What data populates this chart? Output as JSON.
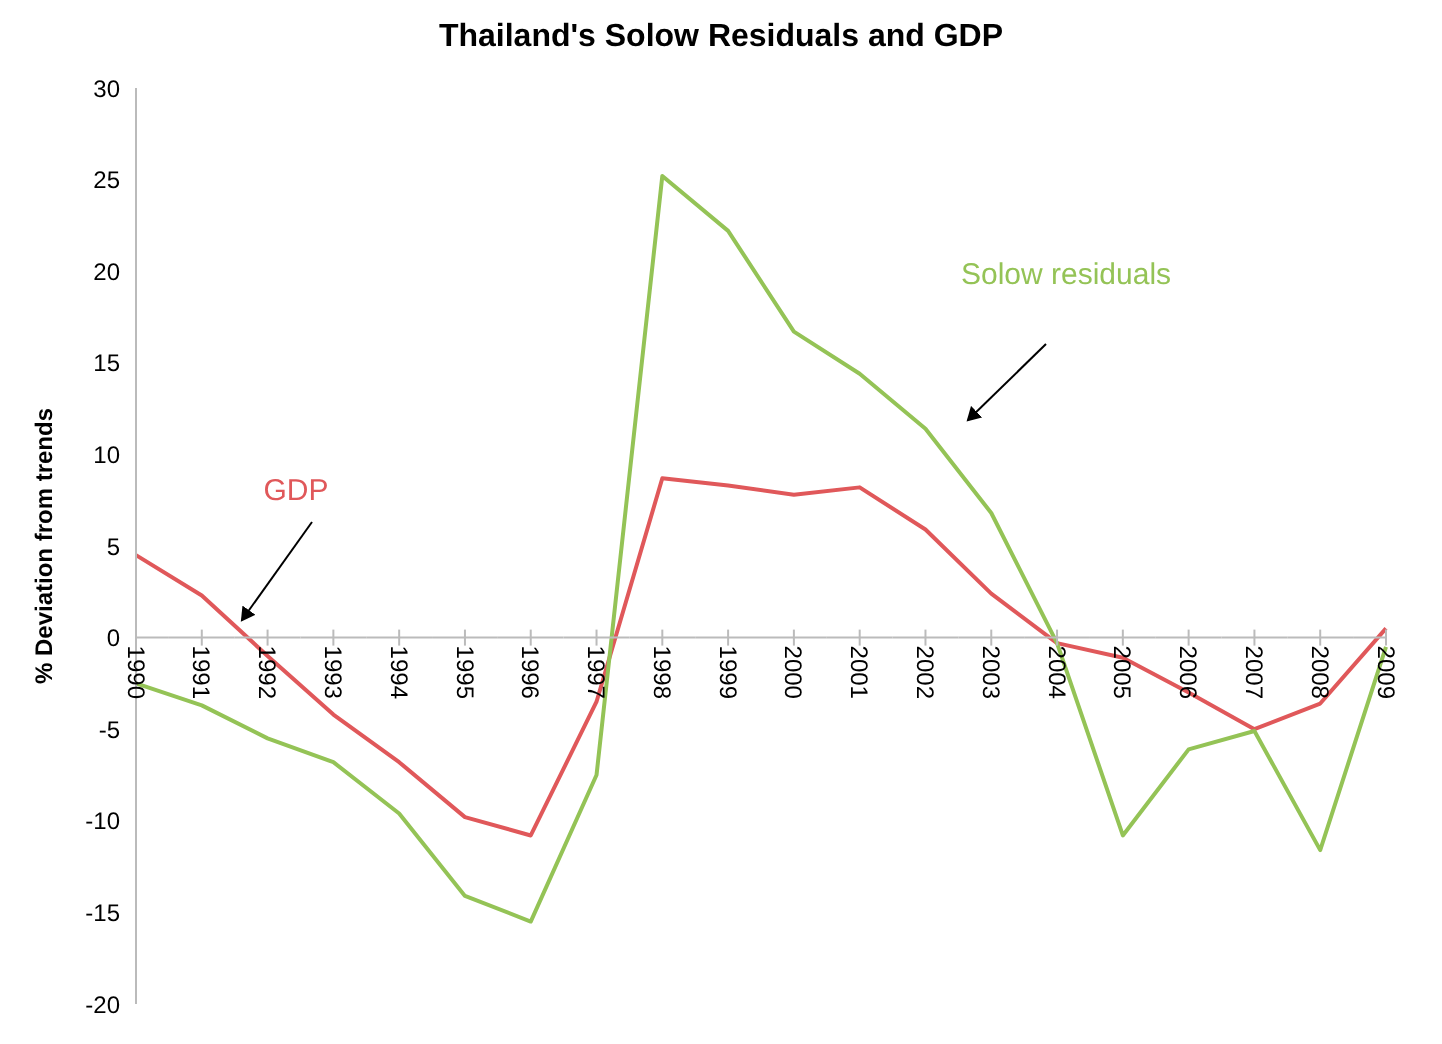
{
  "chart_data": {
    "type": "line",
    "title": "Thailand's Solow Residuals and GDP",
    "ylabel": "% Deviation from trends",
    "categories": [
      "1990",
      "1991",
      "1992",
      "1993",
      "1994",
      "1995",
      "1996",
      "1997",
      "1998",
      "1999",
      "2000",
      "2001",
      "2002",
      "2003",
      "2004",
      "2005",
      "2006",
      "2007",
      "2008",
      "2009"
    ],
    "series": [
      {
        "name": "GDP",
        "color": "#e0585a",
        "values": [
          4.5,
          2.3,
          -1,
          -4.2,
          -6.8,
          -9.8,
          -10.8,
          -3.5,
          8.7,
          8.3,
          7.8,
          8.2,
          5.9,
          2.4,
          -0.3,
          -1.1,
          -3,
          -5,
          -3.6,
          0.5
        ]
      },
      {
        "name": "Solow residuals",
        "color": "#94c356",
        "values": [
          -2.5,
          -3.7,
          -5.5,
          -6.8,
          -9.6,
          -14.1,
          -15.5,
          -7.5,
          25.2,
          22.2,
          16.7,
          14.4,
          11.4,
          6.8,
          -0.3,
          -10.8,
          -6.1,
          -5.1,
          -11.6,
          -0.5
        ]
      }
    ],
    "ylim": [
      -20,
      30
    ],
    "yticks": [
      -20,
      -15,
      -10,
      -5,
      0,
      5,
      10,
      15,
      20,
      25,
      30
    ],
    "marker": "none",
    "line_style": "solid"
  }
}
